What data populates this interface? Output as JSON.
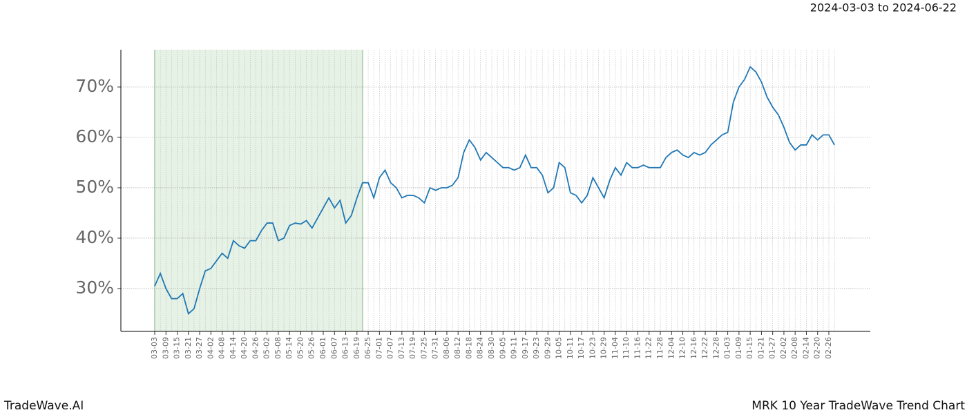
{
  "chart_data": {
    "type": "line",
    "title": "MRK 10 Year TradeWave Trend Chart",
    "subtitle": "2024-03-03 to 2024-06-22",
    "watermark": "TradeWave.AI",
    "categories": [
      "03-03",
      null,
      "03-09",
      null,
      "03-15",
      null,
      "03-21",
      null,
      "03-27",
      null,
      "04-02",
      null,
      "04-08",
      null,
      "04-14",
      null,
      "04-20",
      null,
      "04-26",
      null,
      "05-02",
      null,
      "05-08",
      null,
      "05-14",
      null,
      "05-20",
      null,
      "05-26",
      null,
      "06-01",
      null,
      "06-07",
      null,
      "06-13",
      null,
      "06-19",
      null,
      "06-25",
      null,
      "07-01",
      null,
      "07-07",
      null,
      "07-13",
      null,
      "07-19",
      null,
      "07-25",
      null,
      "07-31",
      null,
      "08-06",
      null,
      "08-12",
      null,
      "08-18",
      null,
      "08-24",
      null,
      "08-30",
      null,
      "09-05",
      null,
      "09-11",
      null,
      "09-17",
      null,
      "09-23",
      null,
      "09-29",
      null,
      "10-05",
      null,
      "10-11",
      null,
      "10-17",
      null,
      "10-23",
      null,
      "10-29",
      null,
      "11-04",
      null,
      "11-10",
      null,
      "11-16",
      null,
      "11-22",
      null,
      "11-28",
      null,
      "12-04",
      null,
      "12-10",
      null,
      "12-16",
      null,
      "12-22",
      null,
      "12-28",
      null,
      "01-03",
      null,
      "01-09",
      null,
      "01-15",
      null,
      "01-21",
      null,
      "01-27",
      null,
      "02-02",
      null,
      "02-08",
      null,
      "02-14",
      null,
      "02-20",
      null,
      "02-26",
      null
    ],
    "series": [
      {
        "color": "#1f77b4",
        "values": [
          30.5,
          33,
          30,
          28,
          28,
          29,
          25,
          26,
          30,
          33.5,
          34,
          35.5,
          37,
          36,
          39.5,
          38.5,
          38,
          39.5,
          39.5,
          41.5,
          43,
          43,
          39.5,
          40,
          42.5,
          43,
          42.8,
          43.5,
          42,
          44,
          46,
          48,
          46,
          47.5,
          43,
          44.5,
          48,
          51,
          51,
          48,
          52,
          53.5,
          51,
          50,
          48,
          48.5,
          48.5,
          48,
          47,
          50,
          49.5,
          50,
          50,
          50.5,
          52,
          57,
          59.5,
          58,
          55.5,
          57,
          56,
          55,
          54,
          54,
          53.5,
          54,
          56.5,
          54,
          54,
          52.5,
          49,
          50,
          55,
          54,
          49,
          48.5,
          47,
          48.5,
          52,
          50,
          48,
          51.5,
          54,
          52.5,
          55,
          54,
          54,
          54.5,
          54,
          54,
          54,
          56,
          57,
          57.5,
          56.5,
          56,
          57,
          56.5,
          57,
          58.5,
          59.5,
          60.5,
          61,
          67,
          70,
          71.5,
          74,
          73,
          71,
          68,
          66,
          64.5,
          62,
          59,
          57.5,
          58.5,
          58.5,
          60.5,
          59.5,
          60.5,
          60.5,
          58.5
        ]
      }
    ],
    "shaded_range": [
      0,
      37
    ],
    "shade_color": "#e6f2e6",
    "ylim": [
      21.5,
      77.4
    ],
    "yticks": [
      {
        "value": 30,
        "label": "30%"
      },
      {
        "value": 40,
        "label": "40%"
      },
      {
        "value": 50,
        "label": "50%"
      },
      {
        "value": 60,
        "label": "60%"
      },
      {
        "value": 70,
        "label": "70%"
      }
    ],
    "grid": true
  }
}
